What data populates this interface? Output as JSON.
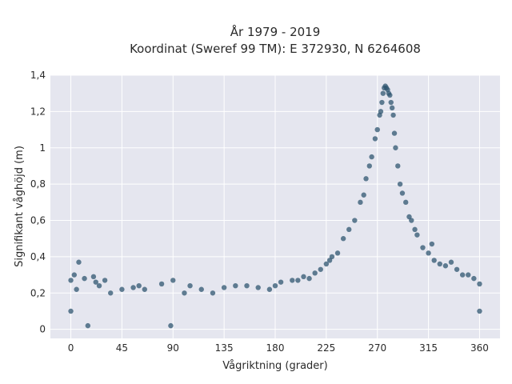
{
  "chart_data": {
    "type": "scatter",
    "title": "År 1979 - 2019",
    "subtitle": "Koordinat (Sweref 99 TM): E 372930, N 6264608",
    "xlabel": "Vågriktning (grader)",
    "ylabel": "Signifikant våghöjd (m)",
    "xlim": [
      -18,
      378
    ],
    "ylim": [
      -0.05,
      1.4
    ],
    "x_ticks": [
      0,
      45,
      90,
      135,
      180,
      225,
      270,
      315,
      360
    ],
    "x_tick_labels": [
      "0",
      "45",
      "90",
      "135",
      "180",
      "225",
      "270",
      "315",
      "360"
    ],
    "y_ticks": [
      0,
      0.2,
      0.4,
      0.6,
      0.8,
      1.0,
      1.2,
      1.4
    ],
    "y_tick_labels": [
      "0",
      "0,2",
      "0,4",
      "0,6",
      "0,8",
      "1",
      "1,2",
      "1,4"
    ],
    "grid": true,
    "legend": "none",
    "series": [
      {
        "color": "#2f5670",
        "x": [
          0,
          0,
          3,
          5,
          7,
          12,
          15,
          20,
          22,
          25,
          30,
          35,
          45,
          55,
          60,
          65,
          80,
          88,
          90,
          100,
          105,
          115,
          125,
          135,
          145,
          155,
          165,
          175,
          180,
          185,
          195,
          200,
          205,
          210,
          215,
          220,
          225,
          228,
          230,
          235,
          240,
          245,
          250,
          255,
          258,
          260,
          263,
          265,
          268,
          270,
          272,
          273,
          274,
          275,
          276,
          277,
          278,
          279,
          280,
          281,
          282,
          283,
          284,
          285,
          286,
          288,
          290,
          292,
          295,
          298,
          300,
          303,
          305,
          310,
          315,
          318,
          320,
          325,
          330,
          335,
          340,
          345,
          350,
          355,
          360,
          360
        ],
        "y": [
          0.1,
          0.27,
          0.3,
          0.22,
          0.37,
          0.28,
          0.02,
          0.29,
          0.26,
          0.24,
          0.27,
          0.2,
          0.22,
          0.23,
          0.24,
          0.22,
          0.25,
          0.02,
          0.27,
          0.2,
          0.24,
          0.22,
          0.2,
          0.23,
          0.24,
          0.24,
          0.23,
          0.22,
          0.24,
          0.26,
          0.27,
          0.27,
          0.29,
          0.28,
          0.31,
          0.33,
          0.36,
          0.38,
          0.4,
          0.42,
          0.5,
          0.55,
          0.6,
          0.7,
          0.74,
          0.83,
          0.9,
          0.95,
          1.05,
          1.1,
          1.18,
          1.2,
          1.25,
          1.3,
          1.33,
          1.34,
          1.33,
          1.32,
          1.3,
          1.29,
          1.25,
          1.22,
          1.18,
          1.08,
          1.0,
          0.9,
          0.8,
          0.75,
          0.7,
          0.62,
          0.6,
          0.55,
          0.52,
          0.45,
          0.42,
          0.47,
          0.38,
          0.36,
          0.35,
          0.37,
          0.33,
          0.3,
          0.3,
          0.28,
          0.25,
          0.1
        ]
      }
    ]
  }
}
